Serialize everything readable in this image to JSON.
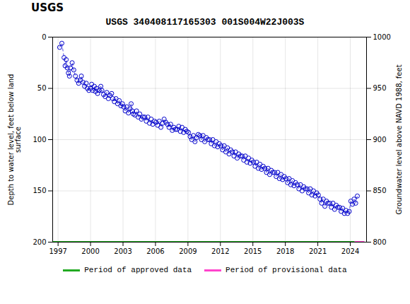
{
  "chart_data": {
    "type": "scatter",
    "title": "USGS 340408117165303 001S004W22J003S",
    "annotations": [
      "USGS"
    ],
    "ylabel": "Depth to water level, feet below land\nsurface",
    "y2label": "Groundwater level above NAVD 1988, feet",
    "xlim": [
      1996.5,
      2025.5
    ],
    "xticks": [
      1997,
      2000,
      2003,
      2006,
      2009,
      2012,
      2015,
      2018,
      2021,
      2024
    ],
    "ylim": [
      200,
      0
    ],
    "yticks": [
      0,
      50,
      100,
      150,
      200
    ],
    "y2lim": [
      800,
      1000
    ],
    "y2ticks": [
      800,
      850,
      900,
      950,
      1000
    ],
    "grid": true,
    "legend": "bottom",
    "series": [
      {
        "type": "scatter",
        "marker": "circle",
        "line_style": "dashed",
        "color": "#0000cc",
        "x": [
          1997.15,
          1997.35,
          1997.55,
          1997.65,
          1997.75,
          1997.85,
          1997.95,
          1998.05,
          1998.15,
          1998.3,
          1998.45,
          1998.6,
          1998.75,
          1998.9,
          1999.05,
          1999.15,
          1999.3,
          1999.45,
          1999.6,
          1999.7,
          1999.85,
          2000.0,
          2000.1,
          2000.2,
          2000.35,
          2000.45,
          2000.55,
          2000.65,
          2000.8,
          2000.95,
          2001.05,
          2001.2,
          2001.35,
          2001.5,
          2001.65,
          2001.8,
          2001.95,
          2002.05,
          2002.2,
          2002.35,
          2002.5,
          2002.65,
          2002.8,
          2002.95,
          2003.05,
          2003.2,
          2003.35,
          2003.5,
          2003.65,
          2003.75,
          2003.85,
          2003.95,
          2004.1,
          2004.25,
          2004.4,
          2004.55,
          2004.7,
          2004.85,
          2005.0,
          2005.15,
          2005.3,
          2005.45,
          2005.6,
          2005.75,
          2005.9,
          2006.05,
          2006.2,
          2006.35,
          2006.5,
          2006.65,
          2006.8,
          2006.95,
          2007.1,
          2007.25,
          2007.4,
          2007.55,
          2007.7,
          2007.85,
          2008.0,
          2008.15,
          2008.3,
          2008.45,
          2008.6,
          2008.75,
          2008.9,
          2009.05,
          2009.2,
          2009.35,
          2009.5,
          2009.65,
          2009.8,
          2009.95,
          2010.1,
          2010.25,
          2010.4,
          2010.55,
          2010.7,
          2010.85,
          2011.0,
          2011.15,
          2011.3,
          2011.45,
          2011.6,
          2011.75,
          2011.9,
          2012.05,
          2012.2,
          2012.35,
          2012.5,
          2012.65,
          2012.8,
          2012.95,
          2013.1,
          2013.25,
          2013.4,
          2013.55,
          2013.7,
          2013.85,
          2014.0,
          2014.15,
          2014.3,
          2014.45,
          2014.6,
          2014.75,
          2014.9,
          2015.05,
          2015.2,
          2015.35,
          2015.5,
          2015.65,
          2015.8,
          2015.95,
          2016.1,
          2016.25,
          2016.4,
          2016.55,
          2016.7,
          2016.85,
          2017.0,
          2017.15,
          2017.3,
          2017.45,
          2017.6,
          2017.75,
          2017.9,
          2018.05,
          2018.2,
          2018.35,
          2018.5,
          2018.65,
          2018.8,
          2018.95,
          2019.1,
          2019.25,
          2019.4,
          2019.55,
          2019.7,
          2019.85,
          2020.0,
          2020.15,
          2020.3,
          2020.45,
          2020.6,
          2020.75,
          2020.9,
          2021.05,
          2021.2,
          2021.35,
          2021.5,
          2021.65,
          2021.8,
          2021.95,
          2022.1,
          2022.25,
          2022.4,
          2022.55,
          2022.7,
          2022.85,
          2023.0,
          2023.15,
          2023.3,
          2023.45,
          2023.6,
          2023.75,
          2023.9,
          2024.05,
          2024.2,
          2024.35,
          2024.5,
          2024.65
        ],
        "values": [
          10,
          6,
          20,
          28,
          22,
          30,
          35,
          38,
          30,
          25,
          32,
          38,
          42,
          45,
          42,
          38,
          44,
          48,
          45,
          50,
          52,
          50,
          46,
          52,
          48,
          53,
          50,
          55,
          52,
          48,
          52,
          56,
          58,
          54,
          60,
          57,
          55,
          60,
          63,
          60,
          65,
          62,
          67,
          65,
          68,
          72,
          68,
          74,
          70,
          65,
          72,
          75,
          76,
          72,
          78,
          75,
          80,
          78,
          78,
          82,
          78,
          84,
          80,
          85,
          82,
          83,
          86,
          82,
          88,
          84,
          80,
          83,
          85,
          88,
          85,
          91,
          88,
          90,
          90,
          87,
          92,
          88,
          93,
          90,
          92,
          93,
          97,
          100,
          96,
          102,
          98,
          95,
          96,
          100,
          96,
          102,
          98,
          100,
          100,
          104,
          100,
          106,
          102,
          107,
          104,
          106,
          110,
          106,
          112,
          108,
          114,
          110,
          112,
          116,
          112,
          118,
          114,
          116,
          116,
          120,
          116,
          122,
          118,
          123,
          120,
          122,
          126,
          122,
          128,
          124,
          129,
          126,
          128,
          132,
          128,
          134,
          130,
          132,
          132,
          136,
          132,
          138,
          134,
          139,
          136,
          138,
          142,
          138,
          144,
          140,
          145,
          142,
          144,
          148,
          144,
          150,
          146,
          148,
          148,
          152,
          148,
          154,
          150,
          155,
          152,
          154,
          158,
          162,
          158,
          165,
          160,
          162,
          162,
          166,
          162,
          168,
          164,
          166,
          166,
          170,
          167,
          172,
          169,
          172,
          170,
          160,
          163,
          158,
          162,
          155
        ]
      },
      {
        "name": "Period of approved data",
        "type": "line",
        "color": "#22aa22",
        "x": [
          1996.5,
          2024.4
        ],
        "values": [
          200,
          200
        ]
      },
      {
        "name": "Period of provisional data",
        "type": "line",
        "color": "#ff44cc",
        "x": [
          2024.4,
          2025.3
        ],
        "values": [
          200,
          200
        ]
      }
    ]
  }
}
